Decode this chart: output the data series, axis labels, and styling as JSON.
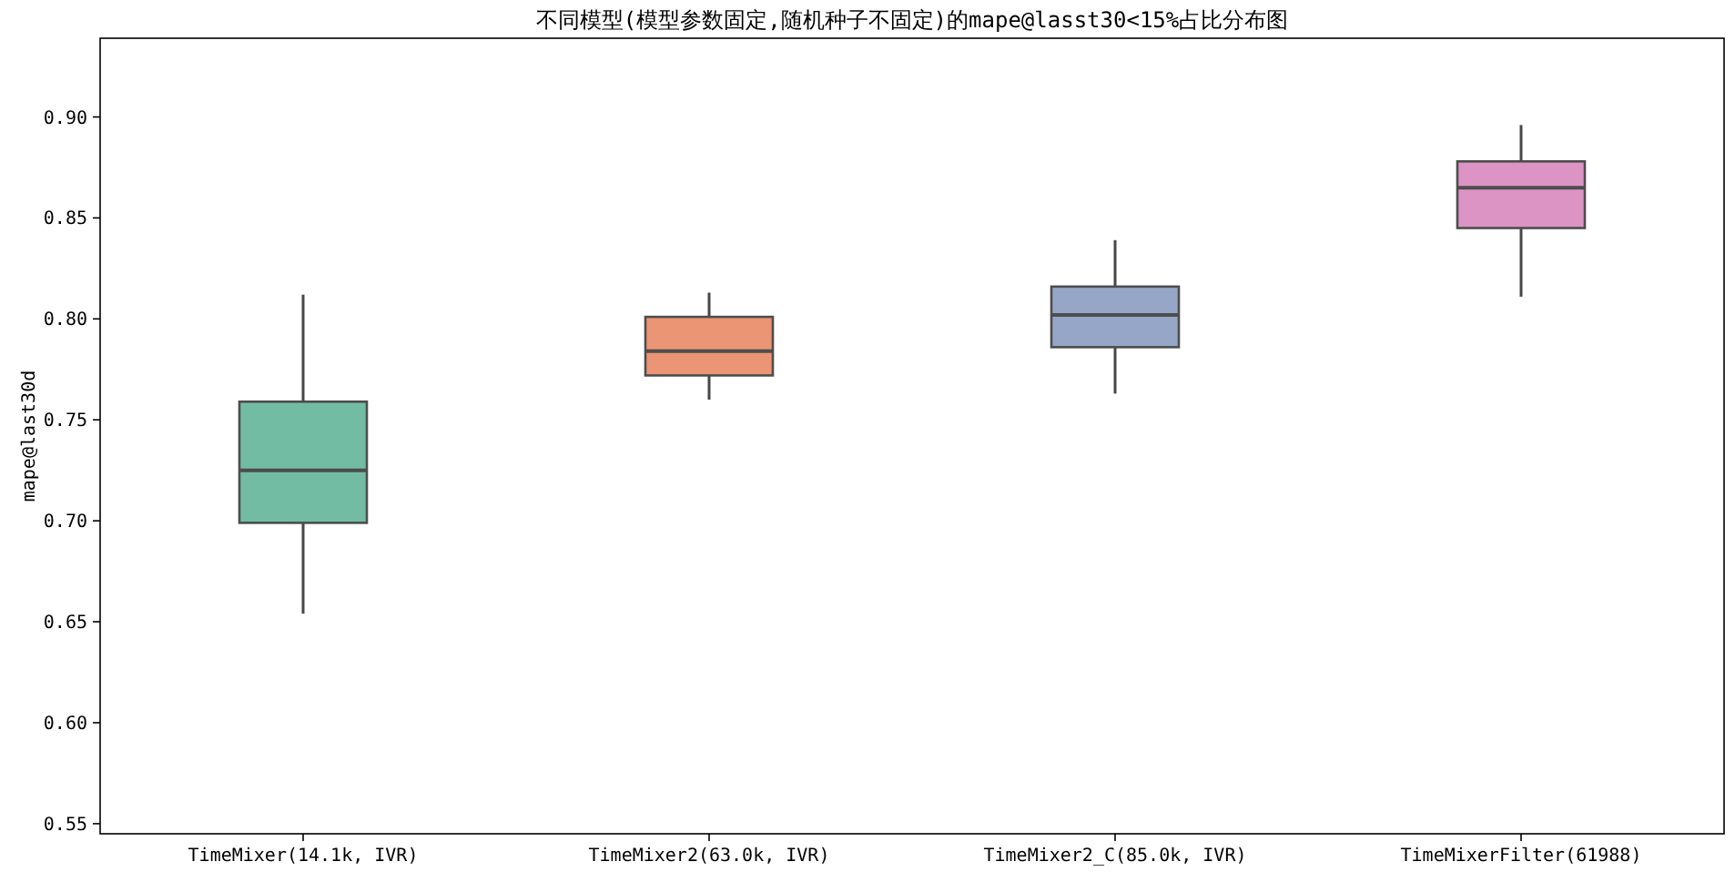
{
  "chart_data": {
    "type": "box",
    "title": "不同模型(模型参数固定,随机种子不固定)的mape@lasst30<15%占比分布图",
    "ylabel": "mape@last30d",
    "categories": [
      "TimeMixer(14.1k, IVR)",
      "TimeMixer2(63.0k, IVR)",
      "TimeMixer2_C(85.0k, IVR)",
      "TimeMixerFilter(61988)"
    ],
    "colors": [
      "#73bca4",
      "#eb9574",
      "#95a6c7",
      "#dc94c4"
    ],
    "boxes": [
      {
        "low": 0.654,
        "q1": 0.699,
        "median": 0.725,
        "q3": 0.759,
        "high": 0.812
      },
      {
        "low": 0.76,
        "q1": 0.772,
        "median": 0.784,
        "q3": 0.801,
        "high": 0.813
      },
      {
        "low": 0.763,
        "q1": 0.786,
        "median": 0.802,
        "q3": 0.816,
        "high": 0.839
      },
      {
        "low": 0.811,
        "q1": 0.845,
        "median": 0.865,
        "q3": 0.878,
        "high": 0.896
      }
    ],
    "ylim": [
      0.545,
      0.939
    ],
    "yticks": [
      0.55,
      {
        "value": 0.6,
        "label": "0.60"
      },
      0.65,
      {
        "value": 0.7,
        "label": "0.70"
      },
      0.75,
      {
        "value": 0.8,
        "label": "0.80"
      },
      0.85,
      {
        "value": 0.9,
        "label": "0.90"
      }
    ]
  }
}
